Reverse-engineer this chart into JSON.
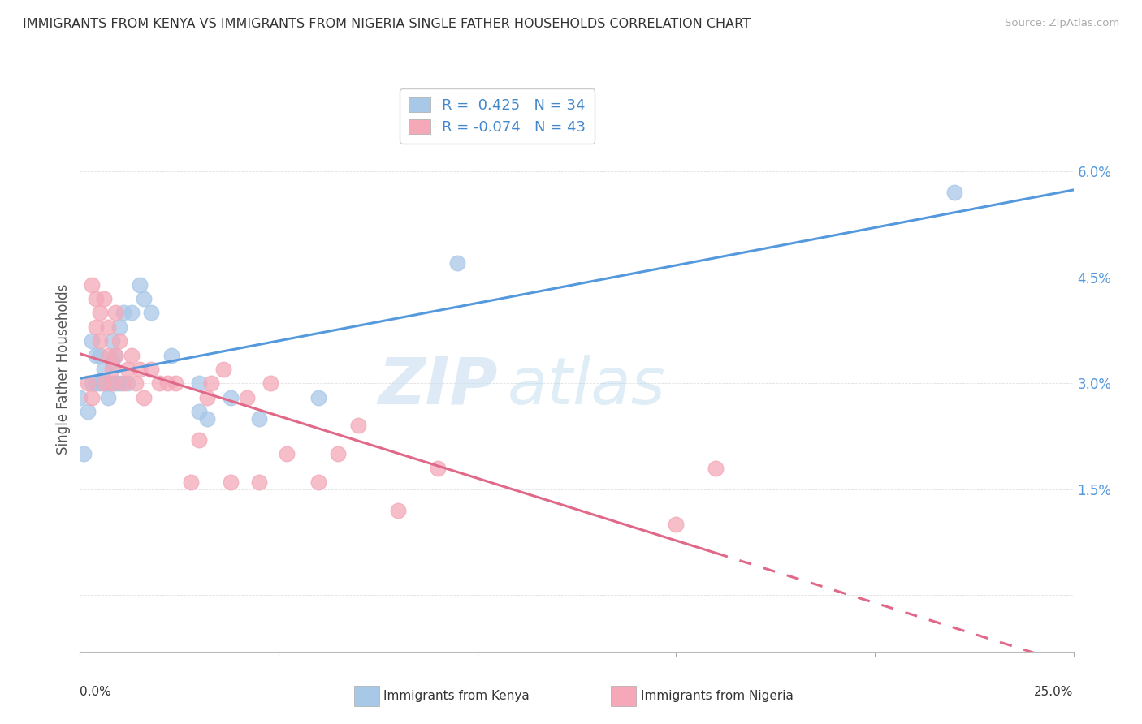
{
  "title": "IMMIGRANTS FROM KENYA VS IMMIGRANTS FROM NIGERIA SINGLE FATHER HOUSEHOLDS CORRELATION CHART",
  "source": "Source: ZipAtlas.com",
  "ylabel": "Single Father Households",
  "ytick_vals": [
    0.0,
    0.015,
    0.03,
    0.045,
    0.06
  ],
  "ytick_labels": [
    "",
    "1.5%",
    "3.0%",
    "4.5%",
    "6.0%"
  ],
  "xlim": [
    0.0,
    0.25
  ],
  "ylim": [
    -0.008,
    0.072
  ],
  "legend_kenya_r": "0.425",
  "legend_kenya_n": "34",
  "legend_nigeria_r": "-0.074",
  "legend_nigeria_n": "43",
  "kenya_color": "#a8c8e8",
  "nigeria_color": "#f4a8b8",
  "kenya_line_color": "#5599dd",
  "nigeria_line_color": "#e06888",
  "watermark_zip": "ZIP",
  "watermark_atlas": "atlas",
  "kenya_points": [
    [
      0.0,
      0.028
    ],
    [
      0.001,
      0.02
    ],
    [
      0.002,
      0.026
    ],
    [
      0.003,
      0.03
    ],
    [
      0.003,
      0.036
    ],
    [
      0.004,
      0.034
    ],
    [
      0.004,
      0.03
    ],
    [
      0.005,
      0.03
    ],
    [
      0.005,
      0.034
    ],
    [
      0.006,
      0.032
    ],
    [
      0.006,
      0.03
    ],
    [
      0.007,
      0.03
    ],
    [
      0.007,
      0.028
    ],
    [
      0.008,
      0.036
    ],
    [
      0.008,
      0.033
    ],
    [
      0.009,
      0.034
    ],
    [
      0.009,
      0.03
    ],
    [
      0.01,
      0.038
    ],
    [
      0.01,
      0.03
    ],
    [
      0.011,
      0.04
    ],
    [
      0.012,
      0.03
    ],
    [
      0.013,
      0.04
    ],
    [
      0.015,
      0.044
    ],
    [
      0.016,
      0.042
    ],
    [
      0.018,
      0.04
    ],
    [
      0.023,
      0.034
    ],
    [
      0.03,
      0.03
    ],
    [
      0.03,
      0.026
    ],
    [
      0.032,
      0.025
    ],
    [
      0.038,
      0.028
    ],
    [
      0.045,
      0.025
    ],
    [
      0.06,
      0.028
    ],
    [
      0.095,
      0.047
    ],
    [
      0.22,
      0.057
    ]
  ],
  "nigeria_points": [
    [
      0.002,
      0.03
    ],
    [
      0.003,
      0.028
    ],
    [
      0.003,
      0.044
    ],
    [
      0.004,
      0.042
    ],
    [
      0.004,
      0.038
    ],
    [
      0.005,
      0.036
    ],
    [
      0.005,
      0.04
    ],
    [
      0.006,
      0.042
    ],
    [
      0.006,
      0.03
    ],
    [
      0.007,
      0.038
    ],
    [
      0.007,
      0.034
    ],
    [
      0.008,
      0.032
    ],
    [
      0.008,
      0.03
    ],
    [
      0.009,
      0.04
    ],
    [
      0.009,
      0.034
    ],
    [
      0.01,
      0.036
    ],
    [
      0.011,
      0.03
    ],
    [
      0.012,
      0.032
    ],
    [
      0.013,
      0.034
    ],
    [
      0.014,
      0.03
    ],
    [
      0.015,
      0.032
    ],
    [
      0.016,
      0.028
    ],
    [
      0.018,
      0.032
    ],
    [
      0.02,
      0.03
    ],
    [
      0.022,
      0.03
    ],
    [
      0.024,
      0.03
    ],
    [
      0.028,
      0.016
    ],
    [
      0.03,
      0.022
    ],
    [
      0.032,
      0.028
    ],
    [
      0.033,
      0.03
    ],
    [
      0.036,
      0.032
    ],
    [
      0.038,
      0.016
    ],
    [
      0.042,
      0.028
    ],
    [
      0.045,
      0.016
    ],
    [
      0.048,
      0.03
    ],
    [
      0.052,
      0.02
    ],
    [
      0.06,
      0.016
    ],
    [
      0.065,
      0.02
    ],
    [
      0.07,
      0.024
    ],
    [
      0.08,
      0.012
    ],
    [
      0.09,
      0.018
    ],
    [
      0.15,
      0.01
    ],
    [
      0.16,
      0.018
    ]
  ],
  "background_color": "#ffffff",
  "grid_color": "#e0e0e0"
}
